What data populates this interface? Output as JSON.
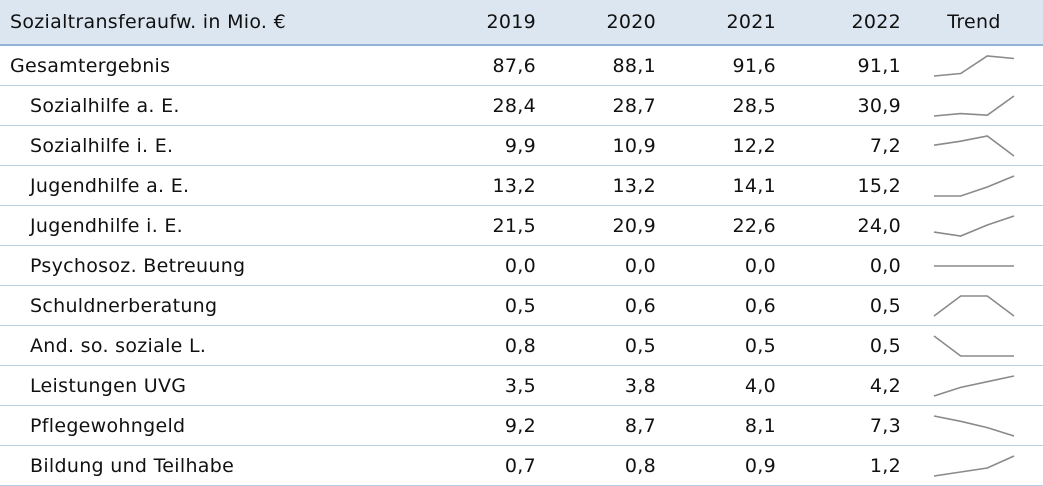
{
  "table": {
    "header": [
      "Sozialtransferaufw. in Mio. €",
      "2019",
      "2020",
      "2021",
      "2022",
      "Trend"
    ],
    "rows": [
      {
        "label": "Gesamtergebnis",
        "values": [
          "87,6",
          "88,1",
          "91,6",
          "91,1"
        ]
      },
      {
        "label": "Sozialhilfe a. E.",
        "values": [
          "28,4",
          "28,7",
          "28,5",
          "30,9"
        ]
      },
      {
        "label": "Sozialhilfe i. E.",
        "values": [
          "9,9",
          "10,9",
          "12,2",
          "7,2"
        ]
      },
      {
        "label": "Jugendhilfe a. E.",
        "values": [
          "13,2",
          "13,2",
          "14,1",
          "15,2"
        ]
      },
      {
        "label": "Jugendhilfe i. E.",
        "values": [
          "21,5",
          "20,9",
          "22,6",
          "24,0"
        ]
      },
      {
        "label": "Psychosoz. Betreuung",
        "values": [
          "0,0",
          "0,0",
          "0,0",
          "0,0"
        ]
      },
      {
        "label": "Schuldnerberatung",
        "values": [
          "0,5",
          "0,6",
          "0,6",
          "0,5"
        ]
      },
      {
        "label": "And. so. soziale L.",
        "values": [
          "0,8",
          "0,5",
          "0,5",
          "0,5"
        ]
      },
      {
        "label": "Leistungen UVG",
        "values": [
          "3,5",
          "3,8",
          "4,0",
          "4,2"
        ]
      },
      {
        "label": "Pflegewohngeld",
        "values": [
          "9,2",
          "8,7",
          "8,1",
          "7,3"
        ]
      },
      {
        "label": "Bildung und Teilhabe",
        "values": [
          "0,7",
          "0,8",
          "0,9",
          "1,2"
        ]
      }
    ]
  }
}
